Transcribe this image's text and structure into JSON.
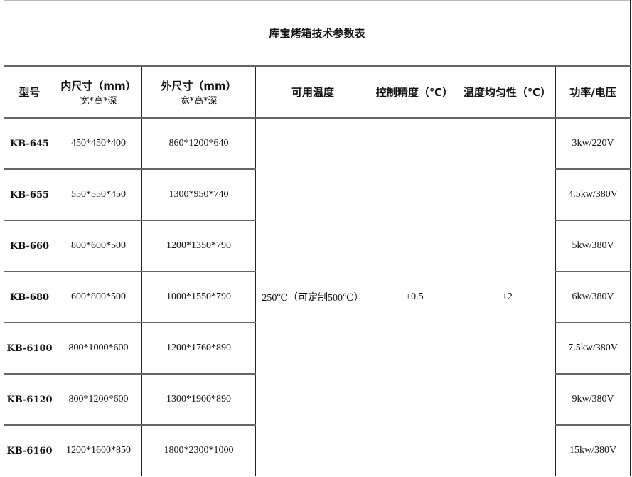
{
  "title": "库宝烤箱技术参数表",
  "headers": {
    "model": "型号",
    "inner": "内尺寸（mm）",
    "inner_sub": "宽*高*深",
    "outer": "外尺寸（mm）",
    "outer_sub": "宽*高*深",
    "temp": "可用温度",
    "precision": "控制精度（℃）",
    "uniformity": "温度均匀性（℃）",
    "power": "功率/电压"
  },
  "shared": {
    "temp": "250℃（可定制500℃）",
    "precision": "±0.5",
    "uniformity": "±2"
  },
  "rows": [
    {
      "model": "KB-645",
      "inner": "450*450*400",
      "outer": "860*1200*640",
      "power": "3kw/220V"
    },
    {
      "model": "KB-655",
      "inner": "550*550*450",
      "outer": "1300*950*740",
      "power": "4.5kw/380V"
    },
    {
      "model": "KB-660",
      "inner": "800*600*500",
      "outer": "1200*1350*790",
      "power": "5kw/380V"
    },
    {
      "model": "KB-680",
      "inner": "600*800*500",
      "outer": "1000*1550*790",
      "power": "6kw/380V"
    },
    {
      "model": "KB-6100",
      "inner": "800*1000*600",
      "outer": "1200*1760*890",
      "power": "7.5kw/380V"
    },
    {
      "model": "KB-6120",
      "inner": "800*1200*600",
      "outer": "1300*1900*890",
      "power": "9kw/380V"
    },
    {
      "model": "KB-6160",
      "inner": "1200*1600*850",
      "outer": "1800*2300*1000",
      "power": "15kw/380V"
    }
  ]
}
